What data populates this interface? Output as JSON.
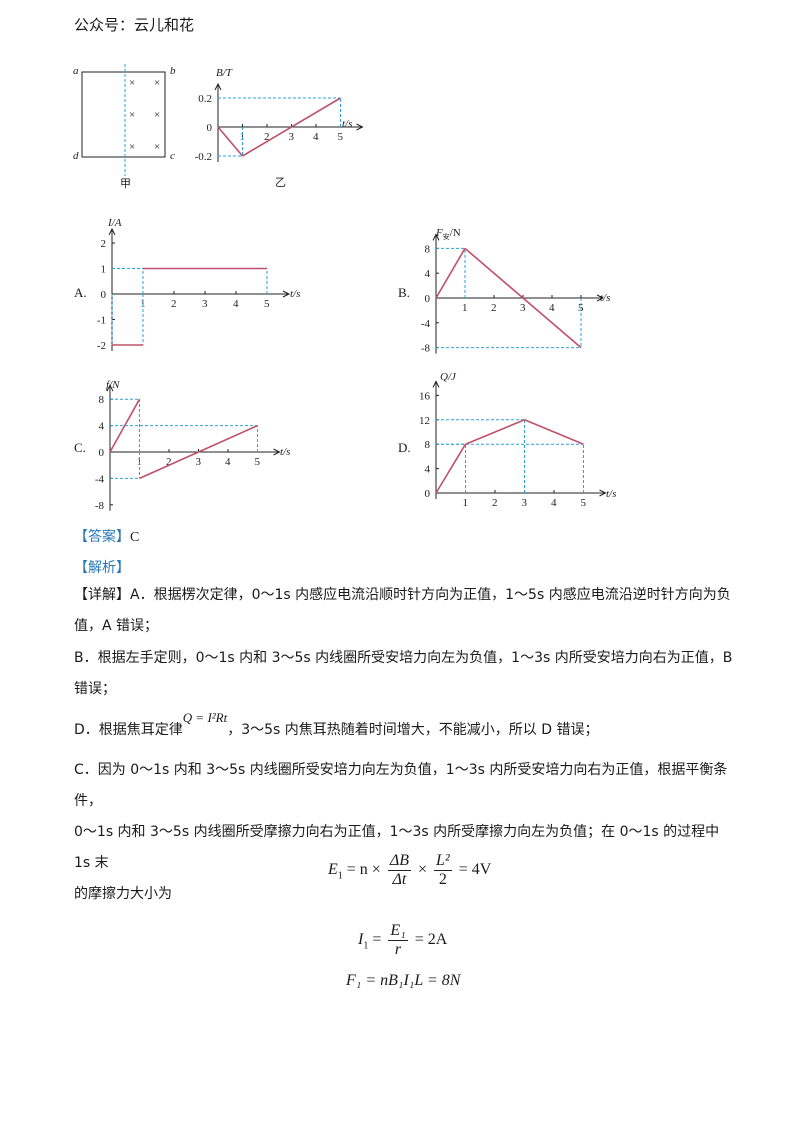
{
  "header": {
    "account": "公众号：云儿和花"
  },
  "figure_jia": {
    "corners": {
      "a": "a",
      "b": "b",
      "c": "c",
      "d": "d"
    },
    "field_mark": "×",
    "caption": "甲"
  },
  "figure_yi": {
    "caption": "乙",
    "ylabel": "B/T",
    "xlabel": "t/s",
    "yticks": [
      "0.2",
      "0",
      "-0.2"
    ],
    "xticks": [
      "1",
      "2",
      "3",
      "4",
      "5"
    ]
  },
  "options": {
    "A": {
      "label": "A.",
      "ylabel": "I/A",
      "xlabel": "t/s",
      "yticks": [
        "2",
        "1",
        "0",
        "-1",
        "-2"
      ],
      "xticks": [
        "1",
        "2",
        "3",
        "4",
        "5"
      ]
    },
    "B": {
      "label": "B.",
      "ylabel": "F",
      "ylabel_sub": "安",
      "ylabel_unit": "/N",
      "xlabel": "t/s",
      "yticks": [
        "8",
        "4",
        "0",
        "-4",
        "-8"
      ],
      "xticks": [
        "1",
        "2",
        "3",
        "4",
        "5"
      ]
    },
    "C": {
      "label": "C.",
      "ylabel": "f/N",
      "xlabel": "t/s",
      "yticks": [
        "8",
        "4",
        "0",
        "-4",
        "-8"
      ],
      "xticks": [
        "1",
        "2",
        "3",
        "4",
        "5"
      ]
    },
    "D": {
      "label": "D.",
      "ylabel": "Q/J",
      "xlabel": "t/s",
      "yticks": [
        "16",
        "12",
        "8",
        "4",
        "0"
      ],
      "xticks": [
        "1",
        "2",
        "3",
        "4",
        "5"
      ]
    }
  },
  "chart_data": [
    {
      "type": "line",
      "name_ref": "乙",
      "x": [
        0,
        1,
        5
      ],
      "y": [
        0,
        -0.2,
        0.2
      ],
      "xlim": [
        0,
        5
      ],
      "ylim": [
        -0.2,
        0.2
      ]
    },
    {
      "type": "line",
      "name_ref": "A",
      "x": [
        0,
        1,
        1,
        5
      ],
      "y": [
        -2,
        -2,
        1,
        1
      ],
      "xlim": [
        0,
        5
      ],
      "ylim": [
        -2,
        2
      ]
    },
    {
      "type": "line",
      "name_ref": "B",
      "x": [
        0,
        1,
        5
      ],
      "y": [
        0,
        8,
        -8
      ],
      "xlim": [
        0,
        5
      ],
      "ylim": [
        -8,
        8
      ]
    },
    {
      "type": "line",
      "name_ref": "C",
      "x": [
        0,
        1,
        1,
        5
      ],
      "y": [
        0,
        8,
        -4,
        4
      ],
      "xlim": [
        0,
        5
      ],
      "ylim": [
        -8,
        8
      ]
    },
    {
      "type": "line",
      "name_ref": "D",
      "x": [
        0,
        1,
        3,
        5
      ],
      "y": [
        0,
        8,
        12,
        8
      ],
      "xlim": [
        0,
        5
      ],
      "ylim": [
        0,
        16
      ]
    }
  ],
  "answer": {
    "tag": "【答案】",
    "value": "C"
  },
  "analysis_tag": "【解析】",
  "details": {
    "tag": "【详解】",
    "A_line1": "A．根据楞次定律，0～1s 内感应电流沿顺时针方向为正值，1～5s 内感应电流沿逆时针方向为负",
    "A_line2": "值，A 错误；",
    "B_line1": "B．根据左手定则，0～1s 内和 3～5s 内线圈所受安培力向左为负值，1～3s 内所受安培力向右为正值，B",
    "B_line2": "错误；",
    "D_prefix": "D．根据焦耳定律",
    "D_formula": "Q = I²Rt",
    "D_suffix": "，3～5s 内焦耳热随着时间增大，不能减小，所以 D 错误；",
    "C_line1": "C．因为 0～1s 内和 3～5s 内线圈所受安培力向左为负值，1～3s 内所受安培力向右为正值，根据平衡条件，",
    "C_line2": "0～1s 内和 3～5s 内线圈所受摩擦力向右为正值，1～3s 内所受摩擦力向左为负值；在 0～1s 的过程中 1s 末",
    "C_line3": "的摩擦力大小为"
  },
  "equations": {
    "e1_lhs": "E",
    "e1_sub": "1",
    "e1_mid": "= n ×",
    "e1_num": "ΔB",
    "e1_den": "Δt",
    "e1_times": "×",
    "e1_num2": "L²",
    "e1_den2": "2",
    "e1_rhs": "= 4V",
    "e2_lhs": "I",
    "e2_sub": "1",
    "e2_eq": "=",
    "e2_num": "E₁",
    "e2_den": "r",
    "e2_rhs": "= 2A",
    "e3": "F₁ = nB₁I₁L = 8N"
  }
}
